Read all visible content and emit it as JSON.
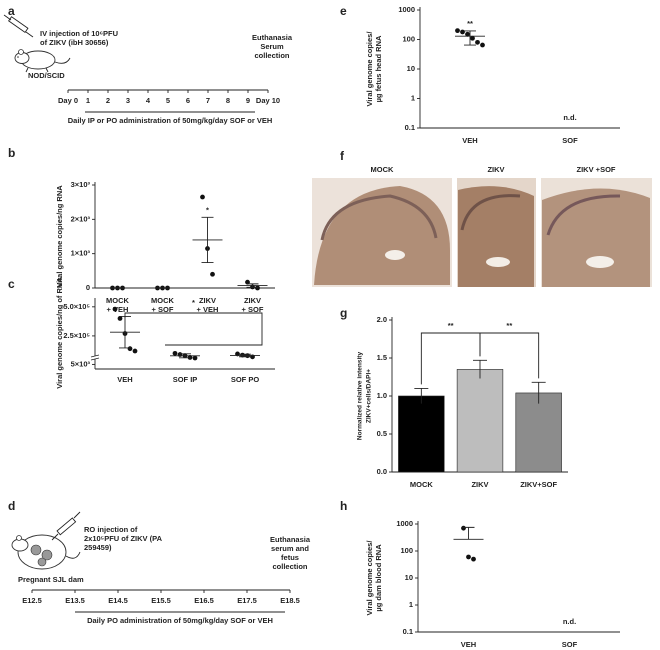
{
  "panel_labels": [
    "a",
    "b",
    "c",
    "d",
    "e",
    "f",
    "g",
    "h"
  ],
  "timeline_a": {
    "injection": [
      "IV injection of 10⁶PFU",
      "of ZIKV (ibH 30656)"
    ],
    "strain": "NOD/SCID",
    "ticks": [
      "Day 0",
      "1",
      "2",
      "3",
      "4",
      "5",
      "6",
      "7",
      "8",
      "9",
      "Day 10"
    ],
    "endpoint": [
      "Euthanasia",
      "Serum",
      "collection"
    ],
    "treatment": "Daily IP or PO administration of 50mg/kg/day SOF or VEH"
  },
  "timeline_d": {
    "injection": [
      "RO injection of",
      "2x10⁵PFU of ZIKV (PA",
      "259459)"
    ],
    "strain": "Pregnant SJL dam",
    "ticks": [
      "E12.5",
      "E13.5",
      "E14.5",
      "E15.5",
      "E16.5",
      "E17.5",
      "E18.5"
    ],
    "endpoint": [
      "Euthanasia",
      "serum and",
      "fetus",
      "collection"
    ],
    "treatment": "Daily PO administration of 50mg/kg/day SOF or VEH"
  },
  "histology_f": {
    "labels": [
      "MOCK",
      "ZIKV",
      "ZIKV +SOF"
    ]
  },
  "chart_data": [
    {
      "type": "dot",
      "ylabel": [
        "Viral genome copies/ng RNA"
      ],
      "categories": [
        [
          "MOCK",
          "+ VEH"
        ],
        [
          "MOCK",
          "+ SOF"
        ],
        [
          "ZIKV",
          "+ VEH"
        ],
        [
          "ZIKV",
          "+ SOF"
        ]
      ],
      "groups": [
        {
          "points": [
            0,
            0,
            0
          ],
          "mean": 0,
          "sem": 0
        },
        {
          "points": [
            0,
            0,
            0
          ],
          "mean": 0,
          "sem": 0
        },
        {
          "points": [
            2650,
            1150,
            400
          ],
          "mean": 1400,
          "sem": 660
        },
        {
          "points": [
            170,
            30,
            0
          ],
          "mean": 70,
          "sem": 50
        }
      ],
      "ylim": [
        0,
        3000
      ],
      "yticks": [
        0,
        {
          "value": 1000,
          "label": "1×10³"
        },
        {
          "value": 2000,
          "label": "2×10³"
        },
        {
          "value": 3000,
          "label": "3×10³"
        }
      ],
      "significance": [
        null,
        null,
        "*",
        null
      ]
    },
    {
      "type": "dot",
      "ylabel": [
        "Viral genome copies/ng of RNA"
      ],
      "categories": [
        [
          "VEH"
        ],
        [
          "SOF IP"
        ],
        [
          "SOF PO"
        ]
      ],
      "groups": [
        {
          "points": [
            480000,
            400000,
            270000,
            140000,
            120000
          ],
          "mean": 282000,
          "sem": 135000
        },
        {
          "points": [
            100000,
            90000,
            80000,
            65000,
            60000
          ],
          "mean": 79000,
          "sem": 17000
        },
        {
          "points": [
            95000,
            85000,
            80000,
            70000
          ],
          "mean": 82000,
          "sem": 11000
        }
      ],
      "ylim": [
        0,
        550000
      ],
      "yticks": [
        {
          "value": 5000,
          "label": "5×10³"
        },
        {
          "value": 250000,
          "label": "2.5×10⁵"
        },
        {
          "value": 500000,
          "label": "5.0×10⁵"
        }
      ],
      "axis_break": true,
      "brackets": [
        "*"
      ]
    },
    {
      "type": "dot",
      "log": true,
      "ylabel": [
        "Viral genome copies/",
        "µg fetus head RNA"
      ],
      "categories": [
        [
          "VEH"
        ],
        [
          "SOF"
        ]
      ],
      "groups": [
        {
          "points": [
            200,
            180,
            150,
            110,
            80,
            65
          ],
          "mean": 130,
          "sem": 65
        },
        null
      ],
      "not_detected": [
        null,
        "n.d."
      ],
      "significance": [
        "**",
        null
      ],
      "ylim": [
        0.1,
        1000
      ],
      "yticks": [
        0.1,
        1,
        10,
        100,
        1000
      ]
    },
    {
      "type": "bar",
      "ylabel": [
        "Normalized relative intensity",
        "ZIKV+cells/DAPI+"
      ],
      "categories": [
        [
          "MOCK"
        ],
        [
          "ZIKV"
        ],
        [
          "ZIKV+SOF"
        ]
      ],
      "values": [
        1.0,
        1.35,
        1.04
      ],
      "errors": [
        0.1,
        0.12,
        0.14
      ],
      "colors": [
        "#000000",
        "#bdbdbd",
        "#8c8c8c"
      ],
      "ylim": [
        0,
        2
      ],
      "yticks": [
        {
          "value": 0,
          "label": "0.0"
        },
        {
          "value": 0.5,
          "label": "0.5"
        },
        {
          "value": 1,
          "label": "1.0"
        },
        {
          "value": 1.5,
          "label": "1.5"
        },
        {
          "value": 2,
          "label": "2.0"
        }
      ],
      "brackets": [
        "**",
        "**"
      ]
    },
    {
      "type": "dot",
      "log": true,
      "ylabel": [
        "Viral genome copies/",
        "µg dam blood RNA"
      ],
      "categories": [
        [
          "VEH"
        ],
        [
          "SOF"
        ]
      ],
      "groups": [
        {
          "points": [
            700,
            60,
            50
          ],
          "mean": 270,
          "sem": 480
        },
        null
      ],
      "not_detected": [
        null,
        "n.d."
      ],
      "ylim": [
        0.1,
        1000
      ],
      "yticks": [
        0.1,
        1,
        10,
        100,
        1000
      ]
    }
  ]
}
